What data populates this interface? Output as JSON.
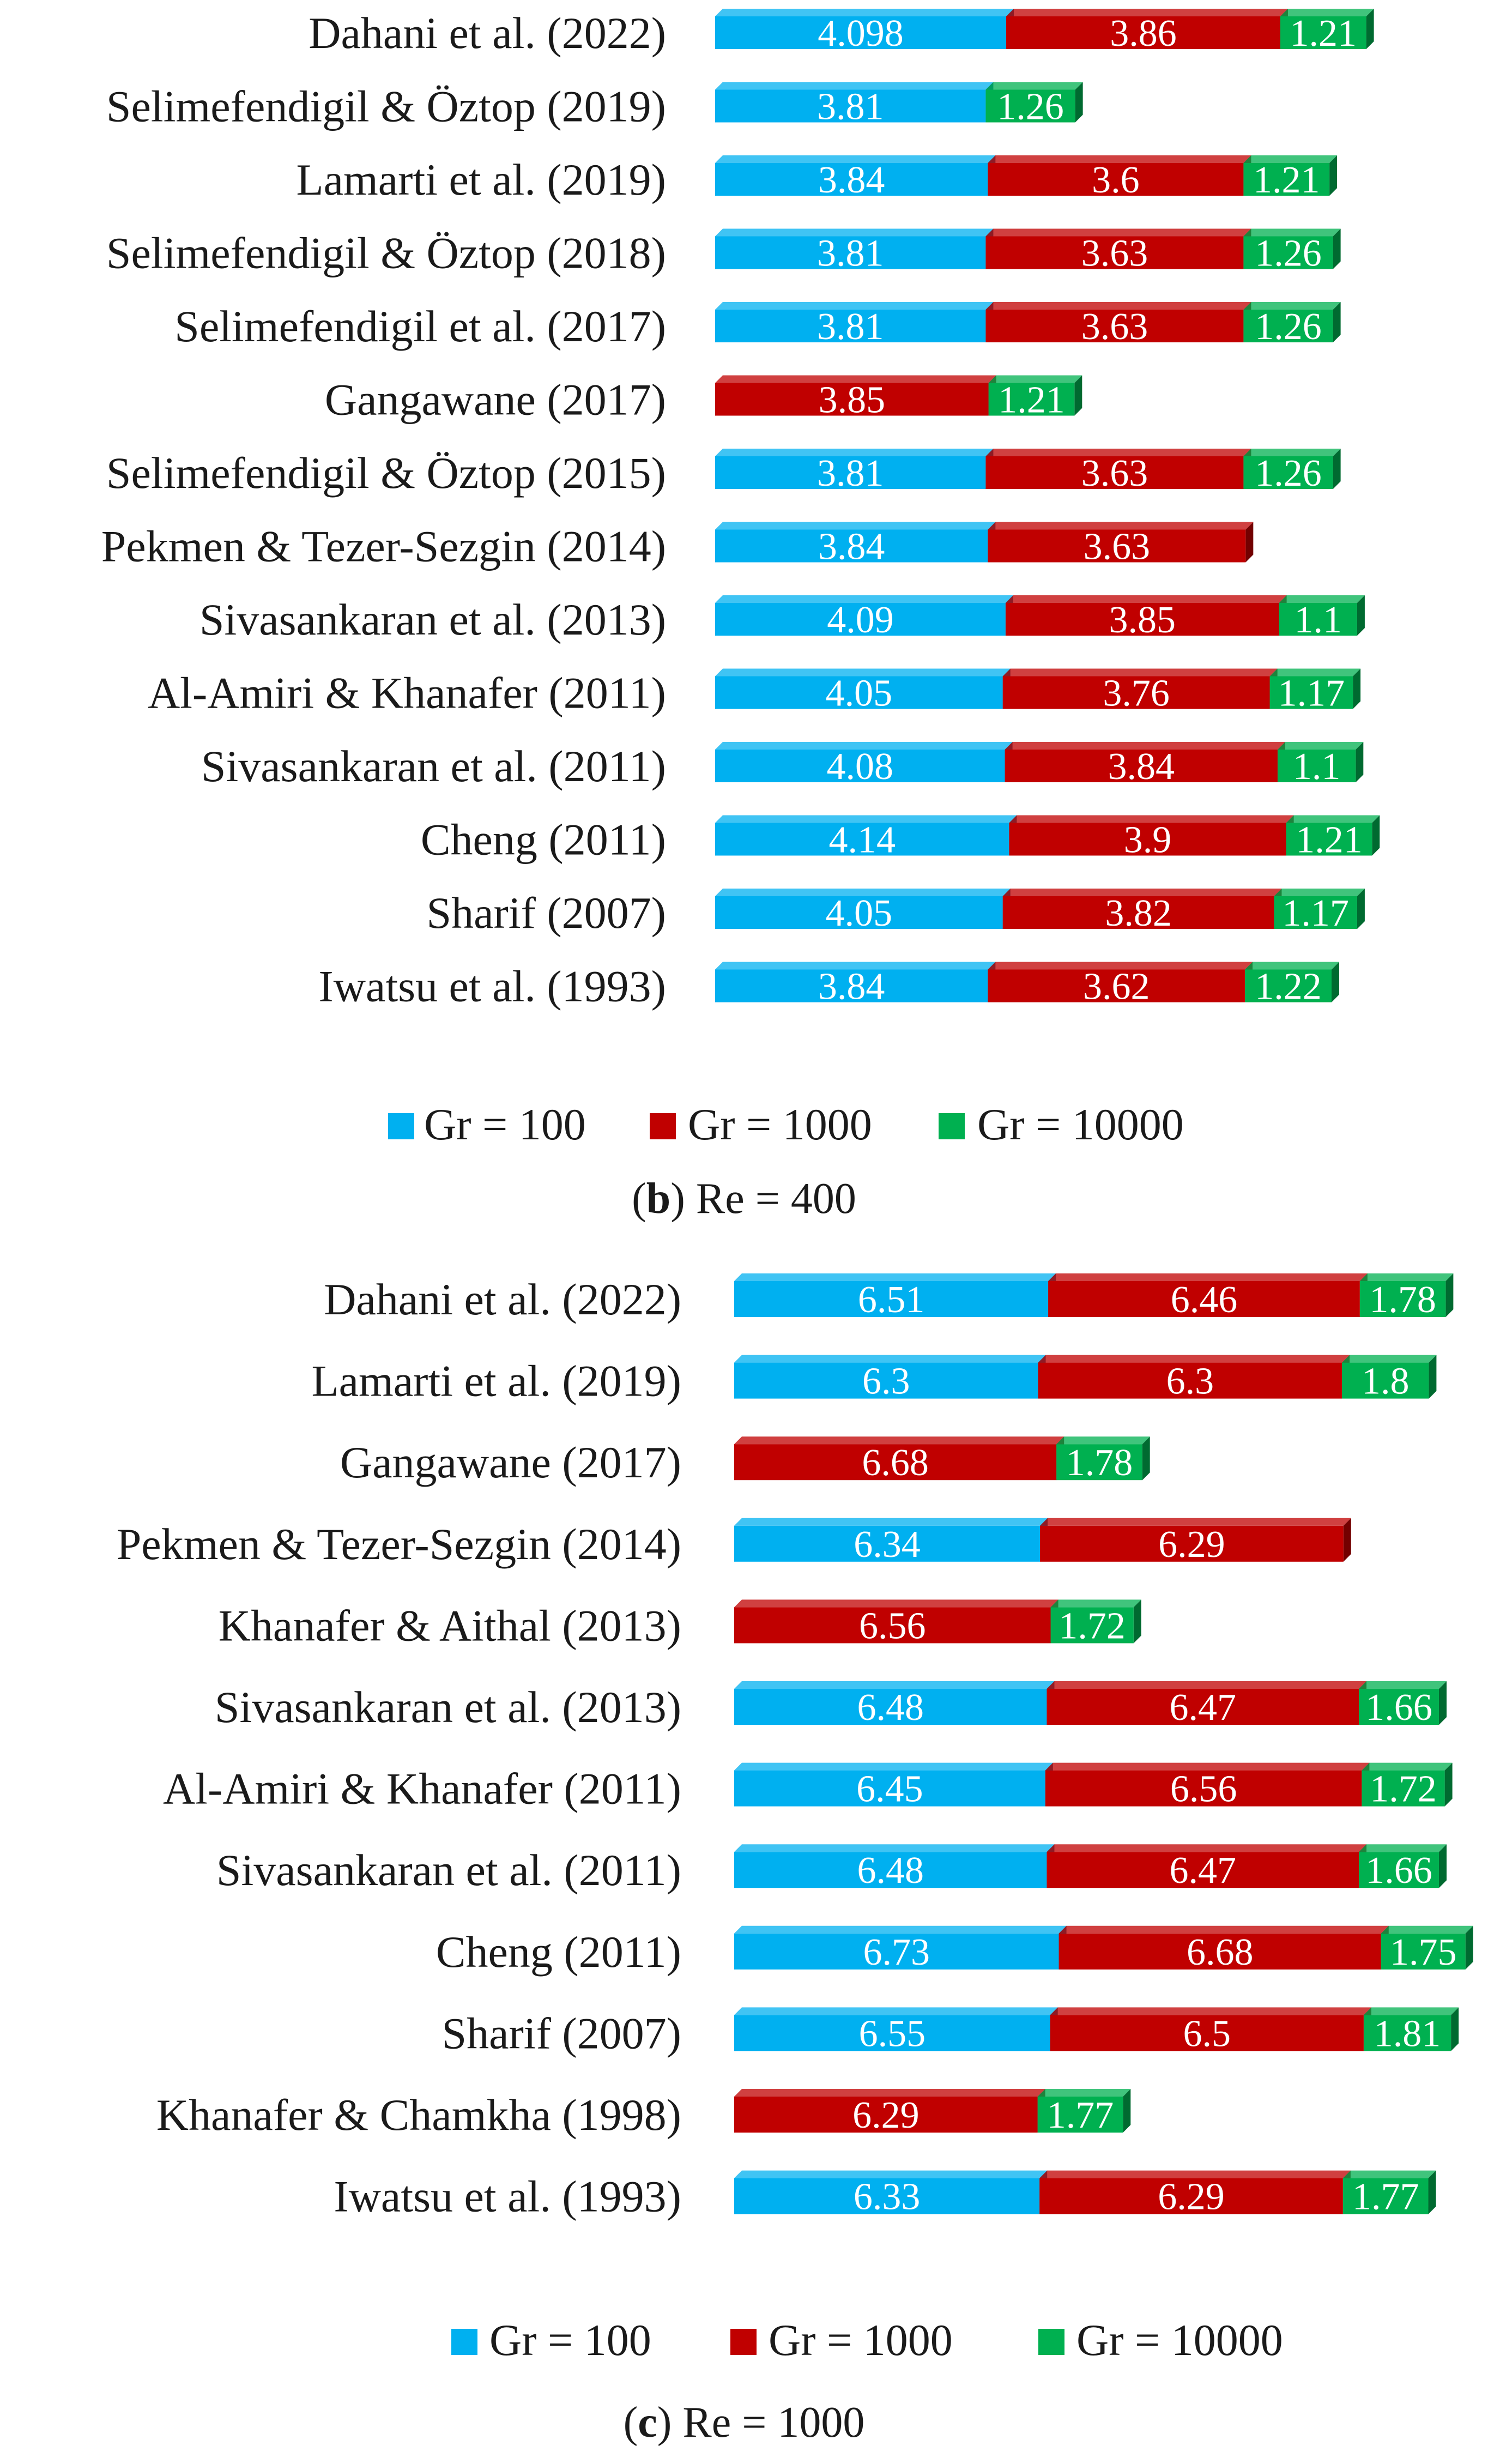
{
  "colors": {
    "gr100": "#00b0f0",
    "gr1000": "#c00000",
    "gr10000": "#00b050"
  },
  "chart_data": [
    {
      "type": "bar",
      "orientation": "horizontal",
      "stacked": true,
      "panel": "b",
      "caption_letter": "b",
      "caption_rest": " Re = 400",
      "series": [
        {
          "name": "Gr = 100",
          "color_key": "gr100",
          "values": [
            4.098,
            3.81,
            3.84,
            3.81,
            3.81,
            null,
            3.81,
            3.84,
            4.09,
            4.05,
            4.08,
            4.14,
            4.05,
            3.84
          ],
          "labels": [
            "4.098",
            "3.81",
            "3.84",
            "3.81",
            "3.81",
            null,
            "3.81",
            "3.84",
            "4.09",
            "4.05",
            "4.08",
            "4.14",
            "4.05",
            "3.84"
          ]
        },
        {
          "name": "Gr = 1000",
          "color_key": "gr1000",
          "values": [
            3.86,
            null,
            3.6,
            3.63,
            3.63,
            3.85,
            3.63,
            3.63,
            3.85,
            3.76,
            3.84,
            3.9,
            3.82,
            3.62
          ],
          "labels": [
            "3.86",
            null,
            "3.6",
            "3.63",
            "3.63",
            "3.85",
            "3.63",
            "3.63",
            "3.85",
            "3.76",
            "3.84",
            "3.9",
            "3.82",
            "3.62"
          ]
        },
        {
          "name": "Gr = 10000",
          "color_key": "gr10000",
          "values": [
            1.21,
            1.26,
            1.21,
            1.26,
            1.26,
            1.21,
            1.26,
            null,
            1.1,
            1.17,
            1.1,
            1.21,
            1.17,
            1.22
          ],
          "labels": [
            "1.21",
            "1.26",
            "1.21",
            "1.26",
            "1.26",
            "1.21",
            "1.26",
            null,
            "1.1",
            "1.17",
            "1.1",
            "1.21",
            "1.17",
            "1.22"
          ]
        }
      ],
      "categories": [
        "Dahani et al. (2022)",
        "Selimefendigil & Öztop (2019)",
        "Lamarti et al. (2019)",
        "Selimefendigil & Öztop (2018)",
        "Selimefendigil et al. (2017)",
        "Gangawane (2017)",
        "Selimefendigil & Öztop (2015)",
        "Pekmen & Tezer-Sezgin (2014)",
        "Sivasankaran et al. (2013)",
        "Al-Amiri & Khanafer (2011)",
        "Sivasankaran et al. (2011)",
        "Cheng (2011)",
        "Sharif (2007)",
        "Iwatsu et al. (1993)"
      ],
      "xlim": [
        0,
        9.17
      ]
    },
    {
      "type": "bar",
      "orientation": "horizontal",
      "stacked": true,
      "panel": "c",
      "caption_letter": "c",
      "caption_rest": " Re = 1000",
      "series": [
        {
          "name": "Gr = 100",
          "color_key": "gr100",
          "values": [
            6.51,
            6.3,
            null,
            6.34,
            null,
            6.48,
            6.45,
            6.48,
            6.73,
            6.55,
            null,
            6.33
          ],
          "labels": [
            "6.51",
            "6.3",
            null,
            "6.34",
            null,
            "6.48",
            "6.45",
            "6.48",
            "6.73",
            "6.55",
            null,
            "6.33"
          ]
        },
        {
          "name": "Gr = 1000",
          "color_key": "gr1000",
          "values": [
            6.46,
            6.3,
            6.68,
            6.29,
            6.56,
            6.47,
            6.56,
            6.47,
            6.68,
            6.5,
            6.29,
            6.29
          ],
          "labels": [
            "6.46",
            "6.3",
            "6.68",
            "6.29",
            "6.56",
            "6.47",
            "6.56",
            "6.47",
            "6.68",
            "6.5",
            "6.29",
            "6.29"
          ]
        },
        {
          "name": "Gr = 10000",
          "color_key": "gr10000",
          "values": [
            1.78,
            1.8,
            1.78,
            null,
            1.72,
            1.66,
            1.72,
            1.66,
            1.75,
            1.81,
            1.77,
            1.77
          ],
          "labels": [
            "1.78",
            "1.8",
            "1.78",
            null,
            "1.72",
            "1.66",
            "1.72",
            "1.66",
            "1.75",
            "1.81",
            "1.77",
            "1.77"
          ]
        }
      ],
      "categories": [
        "Dahani et al. (2022)",
        "Lamarti et al. (2019)",
        "Gangawane (2017)",
        "Pekmen & Tezer-Sezgin (2014)",
        "Khanafer & Aithal (2013)",
        "Sivasankaran et al. (2013)",
        "Al-Amiri & Khanafer (2011)",
        "Sivasankaran et al. (2011)",
        "Cheng (2011)",
        "Sharif (2007)",
        "Khanafer & Chamkha (1998)",
        "Iwatsu et al. (1993)"
      ],
      "xlim": [
        0,
        15.2
      ]
    }
  ]
}
